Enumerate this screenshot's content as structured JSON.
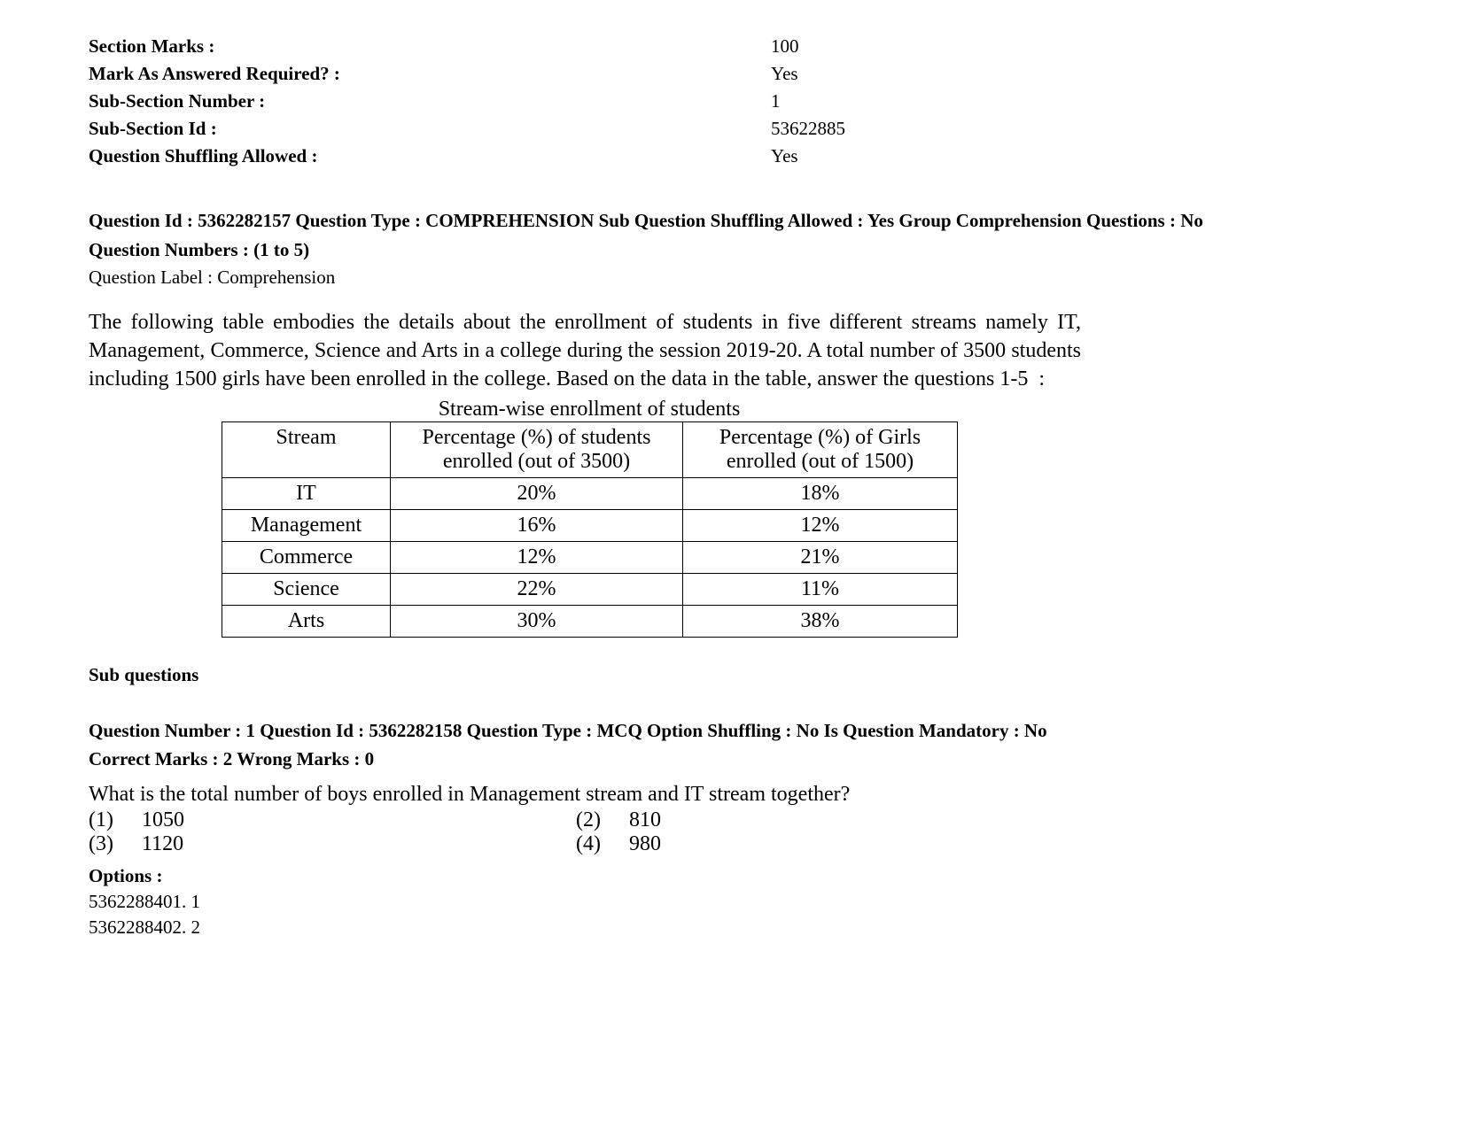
{
  "metadata": [
    {
      "label": "Section Marks :",
      "value": "100"
    },
    {
      "label": "Mark As Answered Required? :",
      "value": "Yes"
    },
    {
      "label": "Sub-Section Number :",
      "value": "1"
    },
    {
      "label": "Sub-Section Id :",
      "value": "53622885"
    },
    {
      "label": "Question Shuffling Allowed :",
      "value": "Yes"
    }
  ],
  "question_header": "Question Id : 5362282157 Question Type : COMPREHENSION Sub Question Shuffling Allowed : Yes Group Comprehension Questions : No",
  "question_numbers": "Question Numbers : (1 to 5)",
  "question_label": "Question Label : Comprehension",
  "passage": "The following table embodies the details about the enrollment of students in five different streams namely IT, Management, Commerce, Science and Arts in a college during the session 2019-20. A total number of 3500 students including 1500 girls have been enrolled in the college. Based on the data in the table, answer the questions 1-5  :",
  "table": {
    "title": "Stream-wise enrollment of students",
    "headers": [
      "Stream",
      "Percentage (%) of students enrolled (out of 3500)",
      "Percentage (%) of Girls enrolled (out of 1500)"
    ],
    "rows": [
      [
        "IT",
        "20%",
        "18%"
      ],
      [
        "Management",
        "16%",
        "12%"
      ],
      [
        "Commerce",
        "12%",
        "21%"
      ],
      [
        "Science",
        "22%",
        "11%"
      ],
      [
        "Arts",
        "30%",
        "38%"
      ]
    ]
  },
  "sub_questions_label": "Sub questions",
  "sub_q": {
    "header": "Question Number : 1 Question Id : 5362282158 Question Type : MCQ Option Shuffling : No Is Question Mandatory : No",
    "marks": "Correct Marks : 2 Wrong Marks : 0",
    "text": "What is the total number of boys enrolled in Management stream and IT stream together?",
    "answers": [
      {
        "num": "(1)",
        "val": "1050"
      },
      {
        "num": "(2)",
        "val": "810"
      },
      {
        "num": "(3)",
        "val": "1120"
      },
      {
        "num": "(4)",
        "val": "980"
      }
    ],
    "options_label": "Options :",
    "options": [
      "5362288401. 1",
      "5362288402. 2"
    ]
  },
  "colors": {
    "text": "#000000",
    "background": "#ffffff",
    "border": "#000000"
  }
}
